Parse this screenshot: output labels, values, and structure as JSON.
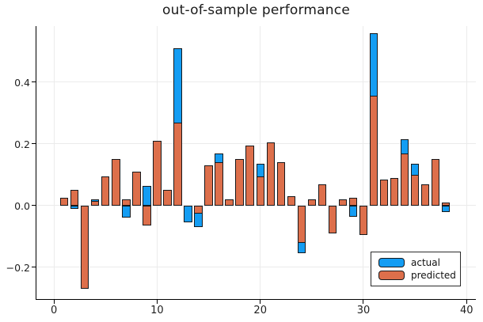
{
  "chart_data": {
    "type": "bar",
    "title": "out-of-sample performance",
    "bar_mode": "overlay",
    "bar_width": 0.8,
    "x": [
      1,
      2,
      3,
      4,
      5,
      6,
      7,
      8,
      9,
      10,
      11,
      12,
      13,
      14,
      15,
      16,
      17,
      18,
      19,
      20,
      21,
      22,
      23,
      24,
      25,
      26,
      27,
      28,
      29,
      30,
      31,
      32,
      33,
      34,
      35,
      36,
      37,
      38
    ],
    "series": [
      {
        "name": "actual",
        "color": "#149DF3",
        "values": [
          null,
          -0.01,
          null,
          0.02,
          null,
          null,
          -0.04,
          null,
          0.065,
          null,
          null,
          0.51,
          -0.055,
          -0.07,
          null,
          0.17,
          null,
          null,
          null,
          0.135,
          null,
          null,
          null,
          -0.155,
          null,
          null,
          null,
          null,
          -0.035,
          null,
          0.56,
          null,
          null,
          0.215,
          0.135,
          null,
          null,
          -0.02
        ]
      },
      {
        "name": "predicted",
        "color": "#DD6F4B",
        "values": [
          0.025,
          0.05,
          -0.27,
          0.015,
          0.095,
          0.15,
          0.02,
          0.11,
          -0.065,
          0.21,
          0.05,
          0.27,
          0.0,
          -0.025,
          0.13,
          0.14,
          0.02,
          0.15,
          0.195,
          0.095,
          0.205,
          0.14,
          0.03,
          -0.12,
          0.02,
          0.07,
          -0.09,
          0.02,
          0.025,
          -0.095,
          0.355,
          0.085,
          0.09,
          0.17,
          0.1,
          0.07,
          0.15,
          0.01
        ]
      }
    ],
    "xlabel": "",
    "ylabel": "",
    "xlim": [
      -1.7,
      40.9
    ],
    "ylim": [
      -0.303,
      0.582
    ],
    "xticks": {
      "values": [
        0,
        10,
        20,
        30,
        40
      ],
      "labels": [
        "0",
        "10",
        "20",
        "30",
        "40"
      ]
    },
    "yticks": {
      "values": [
        -0.2,
        0.0,
        0.2,
        0.4
      ],
      "labels": [
        "−0.2",
        "0.0",
        "0.2",
        "0.4"
      ]
    },
    "grid": true,
    "gridline_color": "#ebebeb",
    "bar_outline_color": "#17191c",
    "legend": {
      "position": "bottom-right",
      "entries": [
        {
          "label": "actual",
          "color": "#149DF3"
        },
        {
          "label": "predicted",
          "color": "#DD6F4B"
        }
      ]
    }
  }
}
